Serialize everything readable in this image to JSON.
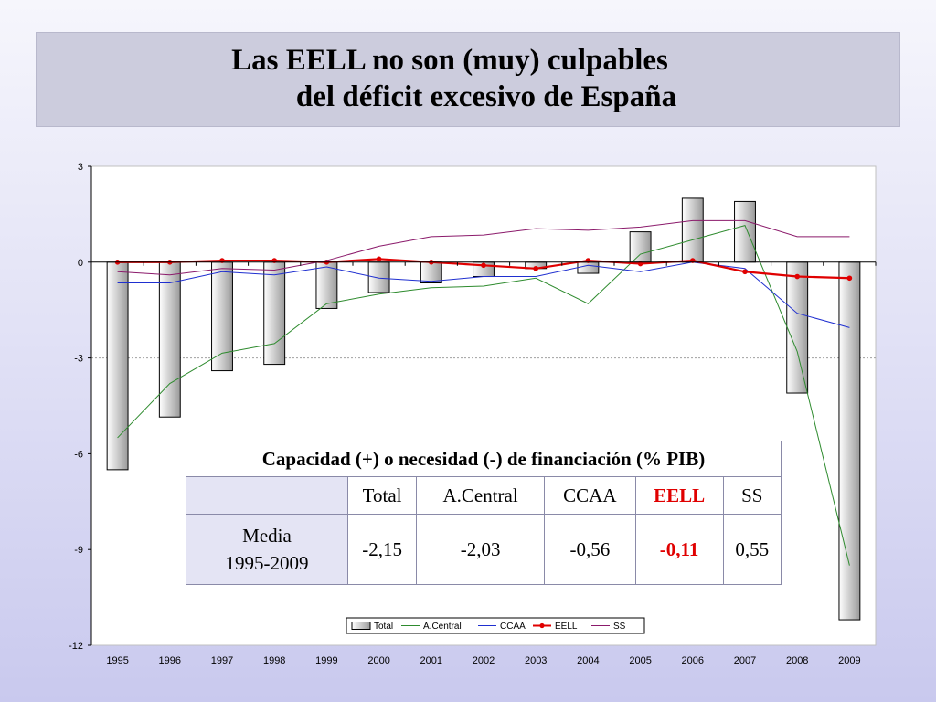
{
  "title": {
    "line1": "Las EELL no son (muy) culpables",
    "line2": "del déficit excesivo de España"
  },
  "chart_data": {
    "type": "bar",
    "categories": [
      "1995",
      "1996",
      "1997",
      "1998",
      "1999",
      "2000",
      "2001",
      "2002",
      "2003",
      "2004",
      "2005",
      "2006",
      "2007",
      "2008",
      "2009"
    ],
    "ylim": [
      -12,
      3
    ],
    "yticks": [
      3,
      0,
      -3,
      -6,
      -9,
      -12
    ],
    "ytick_labels": [
      "3",
      "0",
      "-3",
      "-6",
      "-9",
      "-12"
    ],
    "legend_position": "bottom-right",
    "series": [
      {
        "name": "Total",
        "kind": "bar",
        "values": [
          -6.5,
          -4.85,
          -3.4,
          -3.2,
          -1.45,
          -0.95,
          -0.65,
          -0.45,
          -0.2,
          -0.35,
          0.95,
          2.0,
          1.9,
          -4.1,
          -11.2
        ]
      },
      {
        "name": "A.Central",
        "kind": "line",
        "color": "#2e8b2e",
        "values": [
          -5.5,
          -3.8,
          -2.85,
          -2.55,
          -1.3,
          -1.0,
          -0.8,
          -0.75,
          -0.5,
          -1.3,
          0.25,
          0.7,
          1.15,
          -2.8,
          -9.5
        ]
      },
      {
        "name": "CCAA",
        "kind": "line",
        "color": "#1f2fd0",
        "values": [
          -0.65,
          -0.65,
          -0.3,
          -0.4,
          -0.15,
          -0.5,
          -0.6,
          -0.45,
          -0.45,
          -0.1,
          -0.3,
          0.0,
          -0.2,
          -1.6,
          -2.05
        ]
      },
      {
        "name": "EELL",
        "kind": "line-marker",
        "color": "#e00000",
        "values": [
          0.0,
          0.0,
          0.05,
          0.05,
          0.0,
          0.1,
          0.0,
          -0.1,
          -0.2,
          0.05,
          -0.05,
          0.05,
          -0.3,
          -0.45,
          -0.5
        ]
      },
      {
        "name": "SS",
        "kind": "line",
        "color": "#8b1a6b",
        "values": [
          -0.3,
          -0.4,
          -0.2,
          -0.25,
          0.05,
          0.5,
          0.8,
          0.85,
          1.05,
          1.0,
          1.1,
          1.3,
          1.3,
          0.8,
          0.8
        ]
      }
    ]
  },
  "table": {
    "header": "Capacidad (+) o necesidad (-) de financiación (% PIB)",
    "columns": [
      "Total",
      "A.Central",
      "CCAA",
      "EELL",
      "SS"
    ],
    "row_label_line1": "Media",
    "row_label_line2": "1995-2009",
    "values": [
      "-2,15",
      "-2,03",
      "-0,56",
      "-0,11",
      "0,55"
    ]
  },
  "colors": {
    "total_bar_fill_light": "#ffffff",
    "total_bar_fill_dark": "#9a9a9a",
    "eell_highlight": "#e00000"
  }
}
